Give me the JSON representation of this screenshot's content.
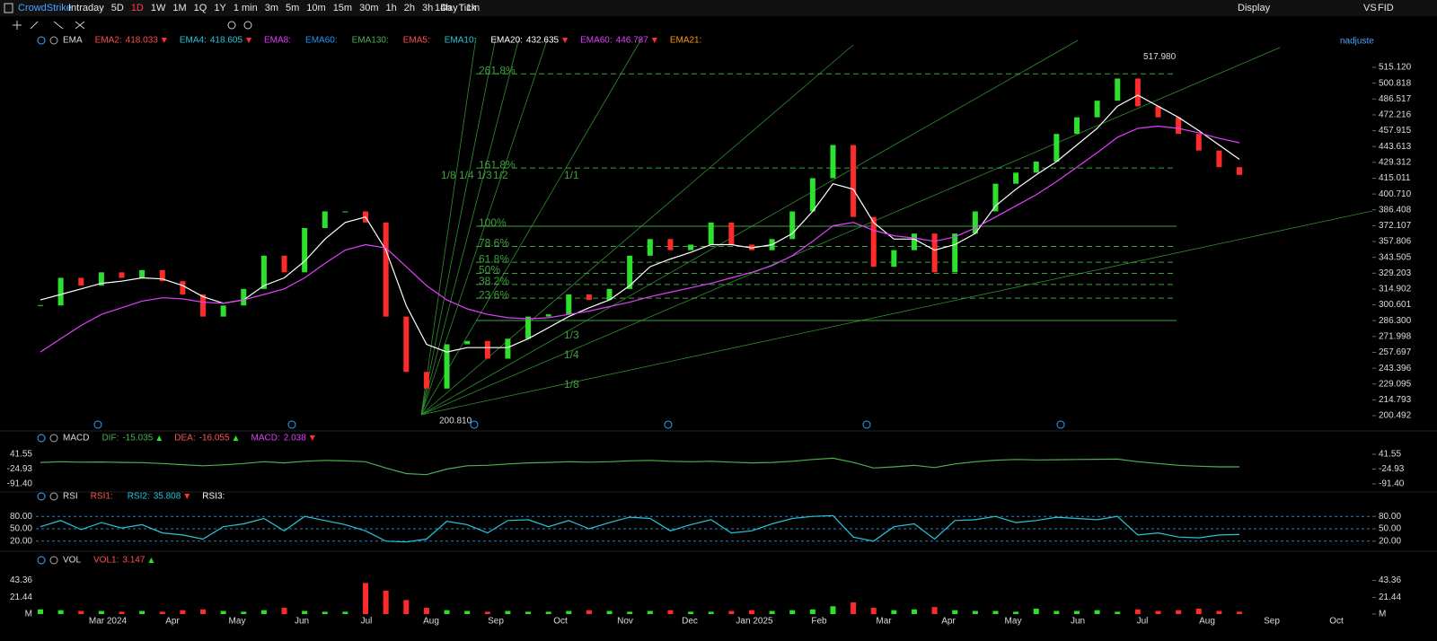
{
  "toolbar": {
    "symbol": "CrowdStrike",
    "periods": [
      "Intraday",
      "5D",
      "1D",
      "1W",
      "1M",
      "1Q",
      "1Y",
      "1 min",
      "3m",
      "5m",
      "10m",
      "15m",
      "30m",
      "1h",
      "2h",
      "3h",
      "4h",
      "Tick"
    ],
    "active_index": 2,
    "interval": "1Day : 1m",
    "display": "Display",
    "compare": "VS",
    "fid": "FID"
  },
  "chart_data": [
    {
      "type": "candle",
      "title": "EMA",
      "adjust": "nadjuste",
      "legend": [
        {
          "name": "EMA2:",
          "value": "418.033",
          "color": "#ff4d4d",
          "trend": "down"
        },
        {
          "name": "EMA4:",
          "value": "418.605",
          "color": "#26c6da",
          "trend": "down"
        },
        {
          "name": "EMA8:",
          "color": "#e040fb"
        },
        {
          "name": "EMA60:",
          "color": "#2196f3"
        },
        {
          "name": "EMA130:",
          "color": "#4caf50"
        },
        {
          "name": "EMA5:",
          "color": "#ff5252"
        },
        {
          "name": "EMA10:",
          "color": "#26c6da"
        },
        {
          "name": "EMA20:",
          "value": "432.635",
          "color": "#ffffff",
          "trend": "down"
        },
        {
          "name": "EMA60:",
          "value": "446.787",
          "color": "#e040fb",
          "trend": "down"
        },
        {
          "name": "EMA21:",
          "color": "#ff9800"
        }
      ],
      "x_labels": [
        "Mar 2024",
        "Apr",
        "May",
        "Jun",
        "Jul",
        "Aug",
        "Sep",
        "Oct",
        "Nov",
        "Dec",
        "Jan 2025",
        "Feb",
        "Mar",
        "Apr",
        "May",
        "Jun",
        "Jul",
        "Aug",
        "Sep",
        "Oct"
      ],
      "ylim": [
        185.1,
        541.9
      ],
      "yticks": [
        {
          "value": 515.12,
          "label": "515.120"
        },
        {
          "value": 500.818,
          "label": "500.818"
        },
        {
          "value": 486.517,
          "label": "486.517"
        },
        {
          "value": 472.216,
          "label": "472.216"
        },
        {
          "value": 457.915,
          "label": "457.915"
        },
        {
          "value": 443.613,
          "label": "443.613"
        },
        {
          "value": 429.312,
          "label": "429.312"
        },
        {
          "value": 415.011,
          "label": "415.011"
        },
        {
          "value": 400.71,
          "label": "400.710"
        },
        {
          "value": 386.408,
          "label": "386.408"
        },
        {
          "value": 372.107,
          "label": "372.107"
        },
        {
          "value": 357.806,
          "label": "357.806"
        },
        {
          "value": 343.505,
          "label": "343.505"
        },
        {
          "value": 329.203,
          "label": "329.203"
        },
        {
          "value": 314.902,
          "label": "314.902"
        },
        {
          "value": 300.601,
          "label": "300.601"
        },
        {
          "value": 286.3,
          "label": "286.300"
        },
        {
          "value": 271.998,
          "label": "271.998"
        },
        {
          "value": 257.697,
          "label": "257.697"
        },
        {
          "value": 243.396,
          "label": "243.396"
        },
        {
          "value": 229.095,
          "label": "229.095"
        },
        {
          "value": 214.793,
          "label": "214.793"
        },
        {
          "value": 200.492,
          "label": "200.492"
        }
      ],
      "up_color": "#2ee02e",
      "down_color": "#ff2a2a",
      "values": [
        300,
        325,
        318,
        330,
        325,
        332,
        322,
        310,
        290,
        300,
        315,
        345,
        330,
        370,
        385,
        385,
        375,
        290,
        240,
        225,
        265,
        268,
        252,
        270,
        290,
        292,
        310,
        305,
        315,
        345,
        360,
        350,
        355,
        375,
        355,
        350,
        360,
        385,
        415,
        445,
        380,
        335,
        350,
        365,
        330,
        365,
        385,
        410,
        420,
        430,
        455,
        470,
        485,
        505,
        480,
        470,
        455,
        440,
        425,
        418
      ],
      "series": [
        {
          "color": "#ffffff",
          "values": [
            305,
            310,
            315,
            320,
            322,
            325,
            324,
            318,
            308,
            302,
            305,
            318,
            325,
            340,
            360,
            375,
            380,
            350,
            300,
            265,
            258,
            262,
            262,
            262,
            270,
            280,
            290,
            298,
            305,
            318,
            335,
            342,
            348,
            355,
            355,
            352,
            355,
            365,
            385,
            410,
            405,
            375,
            360,
            360,
            350,
            355,
            365,
            390,
            405,
            418,
            430,
            445,
            460,
            480,
            490,
            480,
            470,
            458,
            445,
            432
          ]
        },
        {
          "color": "#e040fb",
          "values": [
            258,
            270,
            282,
            292,
            298,
            304,
            307,
            306,
            303,
            302,
            305,
            310,
            315,
            325,
            338,
            350,
            355,
            352,
            335,
            318,
            305,
            297,
            292,
            289,
            288,
            289,
            292,
            295,
            299,
            303,
            308,
            312,
            316,
            320,
            325,
            330,
            336,
            345,
            358,
            372,
            375,
            368,
            363,
            361,
            358,
            362,
            370,
            380,
            390,
            400,
            412,
            425,
            438,
            452,
            460,
            462,
            460,
            456,
            451,
            447
          ]
        }
      ],
      "high": {
        "value": 517.98,
        "label": "517.980"
      },
      "low": {
        "value": 200.81,
        "label": "200.810"
      },
      "fibonacci": {
        "base": 286.5,
        "levels": [
          {
            "value": 509.3,
            "label": "261.8%"
          },
          {
            "value": 424.2,
            "label": "161.8%"
          },
          {
            "value": 371.6,
            "label": "100%"
          },
          {
            "value": 353.4,
            "label": "78.6%"
          },
          {
            "value": 339.1,
            "label": "61.8%"
          },
          {
            "value": 329,
            "label": "50%"
          },
          {
            "value": 319,
            "label": "38.2%"
          },
          {
            "value": 306.6,
            "label": "23.6%"
          }
        ]
      },
      "fan_labels": [
        "1/8",
        "1/4",
        "1/3",
        "1/2",
        "1/1",
        "1/3",
        "1/4",
        "1/8"
      ]
    },
    {
      "type": "line",
      "title": "MACD",
      "legend": [
        {
          "name": "DIF:",
          "value": "-15.035",
          "color": "#4caf50",
          "trend": "up"
        },
        {
          "name": "DEA:",
          "value": "-16.055",
          "color": "#ff5252",
          "trend": "up"
        },
        {
          "name": "MACD:",
          "value": "2.038",
          "color": "#e040fb",
          "trend": "down"
        }
      ],
      "ylim": [
        -115.6,
        73.8
      ],
      "yticks": [
        41.55,
        -24.93,
        {
          "value": -91.4,
          "label": "-91.40"
        }
      ],
      "series": [
        {
          "color": "#4caf50",
          "values": [
            5,
            8,
            6,
            7,
            5,
            4,
            0,
            -5,
            -10,
            -6,
            0,
            8,
            3,
            10,
            14,
            12,
            8,
            -20,
            -45,
            -50,
            -25,
            -10,
            -8,
            -2,
            3,
            5,
            8,
            6,
            8,
            12,
            14,
            10,
            8,
            10,
            6,
            3,
            5,
            10,
            18,
            24,
            5,
            -20,
            -15,
            -8,
            -18,
            -2,
            8,
            15,
            18,
            16,
            17,
            18,
            19,
            20,
            8,
            0,
            -8,
            -12,
            -15,
            -15
          ]
        }
      ]
    },
    {
      "type": "line",
      "title": "RSI",
      "grid": true,
      "legend": [
        {
          "name": "RSI1:",
          "color": "#ff5252"
        },
        {
          "name": "RSI2:",
          "value": "35.808",
          "color": "#26c6da",
          "trend": "down"
        },
        {
          "name": "RSI3:",
          "color": "#ffffff"
        }
      ],
      "ylim": [
        0,
        100
      ],
      "yticks": [
        {
          "value": 80,
          "label": "80.00"
        },
        {
          "value": 50,
          "label": "50.00"
        },
        {
          "value": 20,
          "label": "20.00"
        }
      ],
      "series": [
        {
          "color": "#26c6da",
          "values": [
            55,
            70,
            48,
            65,
            52,
            60,
            40,
            35,
            25,
            55,
            62,
            75,
            45,
            80,
            70,
            60,
            45,
            20,
            18,
            25,
            68,
            60,
            40,
            70,
            72,
            55,
            70,
            50,
            65,
            78,
            75,
            45,
            60,
            72,
            40,
            45,
            62,
            75,
            80,
            82,
            30,
            20,
            55,
            62,
            25,
            70,
            72,
            80,
            65,
            70,
            78,
            75,
            72,
            80,
            35,
            40,
            30,
            28,
            35,
            36
          ]
        }
      ]
    },
    {
      "type": "bar",
      "title": "VOL",
      "legend": [
        {
          "name": "VOL1:",
          "value": "3.147",
          "color": "#ff5252",
          "trend": "up"
        }
      ],
      "ylim": [
        0,
        60
      ],
      "yticks": [
        43.36,
        21.44,
        {
          "value": 0,
          "label": "M"
        }
      ],
      "values": [
        6,
        5,
        4,
        4,
        3,
        4,
        3,
        5,
        6,
        4,
        3,
        5,
        8,
        4,
        3,
        3,
        40,
        30,
        18,
        8,
        5,
        4,
        3,
        4,
        3,
        3,
        4,
        5,
        4,
        3,
        4,
        5,
        3,
        3,
        4,
        5,
        4,
        5,
        6,
        10,
        15,
        8,
        5,
        6,
        9,
        5,
        4,
        4,
        3,
        7,
        4,
        4,
        5,
        3,
        6,
        4,
        5,
        7,
        4,
        3
      ]
    }
  ]
}
